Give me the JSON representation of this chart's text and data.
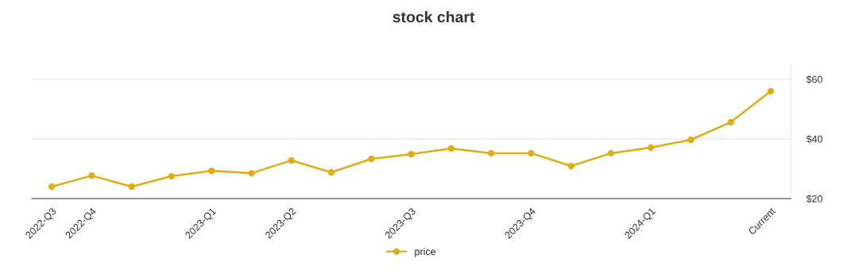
{
  "chart_data": {
    "type": "line",
    "title": "stock chart",
    "categories": [
      "2022-Q3",
      "2022-Q4",
      null,
      null,
      "2023-Q1",
      null,
      "2023-Q2",
      null,
      null,
      "2023-Q3",
      null,
      null,
      "2023-Q4",
      null,
      null,
      "2024-Q1",
      null,
      null,
      "Current"
    ],
    "series": [
      {
        "name": "price",
        "color": "#e0ac13",
        "values": [
          24.0,
          27.7,
          24.0,
          27.5,
          29.3,
          28.5,
          32.8,
          28.8,
          33.3,
          34.9,
          36.8,
          35.2,
          35.2,
          30.9,
          35.2,
          37.1,
          39.7,
          45.6,
          56.0
        ]
      }
    ],
    "ylim": [
      20,
      65
    ],
    "yticks": [
      {
        "value": 20,
        "label": "$20"
      },
      {
        "value": 40,
        "label": "$40"
      },
      {
        "value": 60,
        "label": "$60"
      }
    ],
    "grid": "y",
    "legend": "bottom",
    "marker": "circle",
    "line_style": "solid"
  }
}
